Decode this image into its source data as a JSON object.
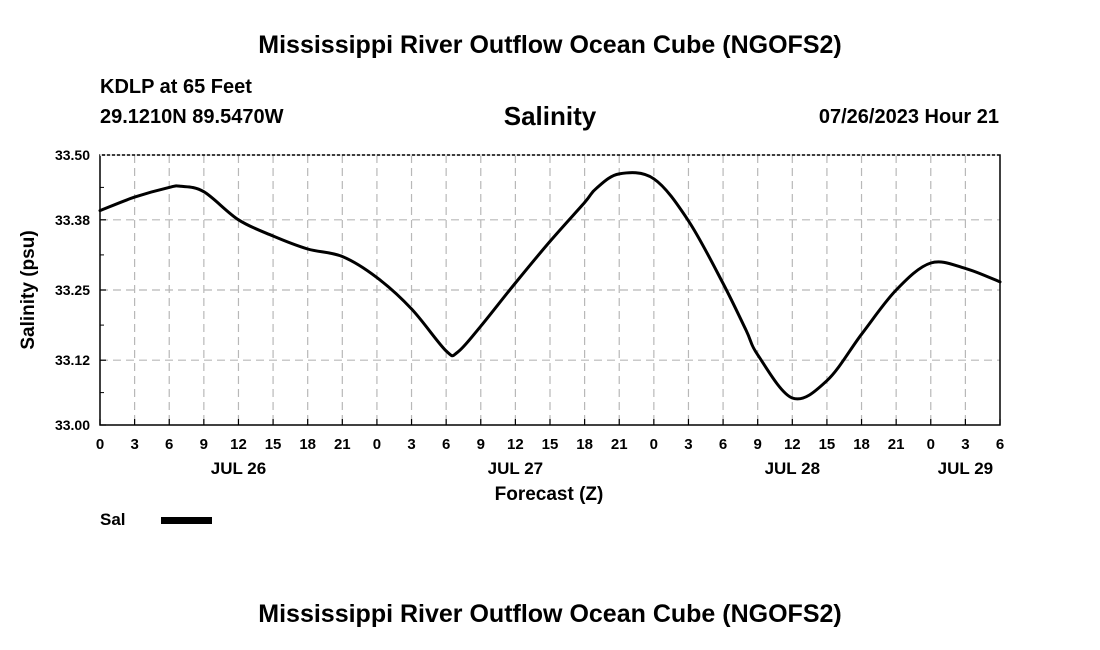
{
  "header": {
    "title": "Mississippi River Outflow Ocean Cube (NGOFS2)",
    "station": "KDLP at 65 Feet",
    "coordinates": "29.1210N  89.5470W",
    "variable": "Salinity",
    "datetime": "07/26/2023 Hour 21"
  },
  "footer": {
    "title": "Mississippi River Outflow Ocean Cube (NGOFS2)"
  },
  "legend": {
    "label": "Sal",
    "color": "#000000"
  },
  "chart_data": {
    "type": "line",
    "title": "Salinity",
    "xlabel": "Forecast (Z)",
    "ylabel": "Salinity (psu)",
    "xlim": [
      0,
      78
    ],
    "ylim": [
      33.0,
      33.5
    ],
    "grid": true,
    "x_ticks": [
      0,
      3,
      6,
      9,
      12,
      15,
      18,
      21,
      24,
      27,
      30,
      33,
      36,
      39,
      42,
      45,
      48,
      51,
      54,
      57,
      60,
      63,
      66,
      69,
      72,
      75,
      78
    ],
    "x_tick_labels": [
      "0",
      "3",
      "6",
      "9",
      "12",
      "15",
      "18",
      "21",
      "0",
      "3",
      "6",
      "9",
      "12",
      "15",
      "18",
      "21",
      "0",
      "3",
      "6",
      "9",
      "12",
      "15",
      "18",
      "21",
      "0",
      "3",
      "6"
    ],
    "date_labels": [
      {
        "x": 12,
        "label": "JUL 26"
      },
      {
        "x": 36,
        "label": "JUL 27"
      },
      {
        "x": 60,
        "label": "JUL 28"
      },
      {
        "x": 75,
        "label": "JUL 29"
      }
    ],
    "y_ticks": [
      33.0,
      33.12,
      33.25,
      33.38,
      33.5
    ],
    "y_tick_labels": [
      "33.00",
      "33.12",
      "33.25",
      "33.38",
      "33.50"
    ],
    "series": [
      {
        "name": "Sal",
        "x": [
          0,
          3,
          6,
          7,
          9,
          12,
          15,
          18,
          21,
          24,
          27,
          30,
          31,
          33,
          36,
          39,
          42,
          43,
          45,
          48,
          51,
          54,
          56,
          57,
          60,
          63,
          66,
          69,
          72,
          75,
          78
        ],
        "y": [
          33.397,
          33.422,
          33.44,
          33.442,
          33.432,
          33.38,
          33.35,
          33.326,
          33.312,
          33.273,
          33.215,
          33.137,
          33.135,
          33.183,
          33.263,
          33.34,
          33.412,
          33.438,
          33.465,
          33.456,
          33.378,
          33.262,
          33.175,
          33.13,
          33.05,
          33.082,
          33.168,
          33.25,
          33.3,
          33.29,
          33.265
        ]
      }
    ]
  }
}
